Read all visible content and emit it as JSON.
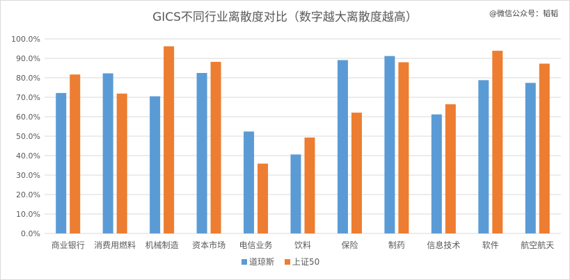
{
  "watermark": "@微信公众号：韬韬",
  "chart_data": {
    "type": "bar",
    "title": "GICS不同行业离散度对比（数字越大离散度越高）",
    "xlabel": "",
    "ylabel": "",
    "ylim": [
      0,
      100
    ],
    "yticks": [
      "0.0%",
      "10.0%",
      "20.0%",
      "30.0%",
      "40.0%",
      "50.0%",
      "60.0%",
      "70.0%",
      "80.0%",
      "90.0%",
      "100.0%"
    ],
    "grid": true,
    "legend_position": "bottom",
    "categories": [
      "商业银行",
      "消费用燃料",
      "机械制造",
      "资本市场",
      "电信业务",
      "饮料",
      "保险",
      "制药",
      "信息技术",
      "软件",
      "航空航天"
    ],
    "series": [
      {
        "name": "道琼斯",
        "color": "#5b9bd5",
        "values": [
          72.2,
          82.3,
          70.5,
          82.5,
          52.4,
          40.6,
          89.1,
          91.2,
          61.2,
          78.8,
          77.4
        ]
      },
      {
        "name": "上证50",
        "color": "#ed7d31",
        "values": [
          81.7,
          71.9,
          96.2,
          88.2,
          35.9,
          49.3,
          62.1,
          88.0,
          66.4,
          93.9,
          87.3
        ]
      }
    ]
  }
}
